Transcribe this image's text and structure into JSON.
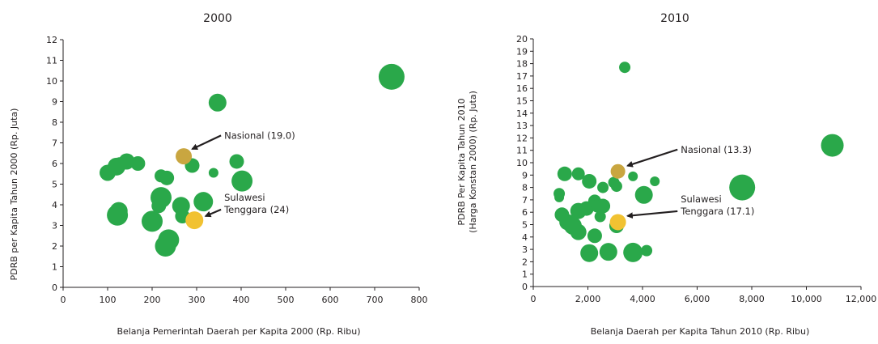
{
  "chart_data": [
    {
      "type": "scatter",
      "title": "2000",
      "xlabel": "Belanja Pemerintah Daerah per Kapita 2000 (Rp. Ribu)",
      "ylabel": [
        "PDRB per Kapita Tahun  2000 (Rp. Juta)"
      ],
      "xlim": [
        0,
        800
      ],
      "ylim": [
        0,
        12
      ],
      "xticks": [
        0,
        100,
        200,
        300,
        400,
        500,
        600,
        700,
        800
      ],
      "xtick_labels": [
        "0",
        "100",
        "200",
        "300",
        "400",
        "500",
        "600",
        "700",
        "800"
      ],
      "yticks": [
        0,
        1,
        2,
        3,
        4,
        5,
        6,
        7,
        8,
        9,
        10,
        11,
        12
      ],
      "ytick_labels": [
        "0",
        "1",
        "2",
        "3",
        "4",
        "5",
        "6",
        "7",
        "8",
        "9",
        "10",
        "11",
        "12"
      ],
      "grid": false,
      "legend": "none",
      "colors": {
        "province": "#2aa84a",
        "nasional": "#c9a640",
        "highlight": "#f1c232"
      },
      "points": [
        {
          "x": 738,
          "y": 10.2,
          "size": 16,
          "group": "province"
        },
        {
          "x": 347,
          "y": 8.95,
          "size": 11,
          "group": "province"
        },
        {
          "x": 390,
          "y": 6.1,
          "size": 9,
          "group": "province"
        },
        {
          "x": 290,
          "y": 5.9,
          "size": 9,
          "group": "province"
        },
        {
          "x": 338,
          "y": 5.55,
          "size": 6,
          "group": "province"
        },
        {
          "x": 402,
          "y": 5.15,
          "size": 13,
          "group": "province"
        },
        {
          "x": 100,
          "y": 5.55,
          "size": 10,
          "group": "province"
        },
        {
          "x": 120,
          "y": 5.85,
          "size": 11,
          "group": "province"
        },
        {
          "x": 127,
          "y": 5.95,
          "size": 9,
          "group": "province"
        },
        {
          "x": 143,
          "y": 6.1,
          "size": 10,
          "group": "province"
        },
        {
          "x": 168,
          "y": 6.0,
          "size": 9,
          "group": "province"
        },
        {
          "x": 220,
          "y": 5.4,
          "size": 8,
          "group": "province"
        },
        {
          "x": 233,
          "y": 5.3,
          "size": 9,
          "group": "province"
        },
        {
          "x": 220,
          "y": 4.35,
          "size": 13,
          "group": "province"
        },
        {
          "x": 215,
          "y": 3.95,
          "size": 9,
          "group": "province"
        },
        {
          "x": 200,
          "y": 3.2,
          "size": 13,
          "group": "province"
        },
        {
          "x": 125,
          "y": 3.7,
          "size": 11,
          "group": "province"
        },
        {
          "x": 122,
          "y": 3.5,
          "size": 13,
          "group": "province"
        },
        {
          "x": 265,
          "y": 3.95,
          "size": 11,
          "group": "province"
        },
        {
          "x": 268,
          "y": 3.45,
          "size": 9,
          "group": "province"
        },
        {
          "x": 315,
          "y": 4.15,
          "size": 12,
          "group": "province"
        },
        {
          "x": 237,
          "y": 2.3,
          "size": 13,
          "group": "province"
        },
        {
          "x": 230,
          "y": 2.0,
          "size": 13,
          "group": "province"
        },
        {
          "x": 271,
          "y": 6.35,
          "size": 10,
          "group": "nasional"
        },
        {
          "x": 295,
          "y": 3.25,
          "size": 11,
          "group": "highlight"
        }
      ],
      "annotations": [
        {
          "lines": [
            "Nasional (19.0)"
          ],
          "tx": 362,
          "ty": 7.2,
          "ax": 290,
          "ay": 6.7
        },
        {
          "lines": [
            "Sulawesi",
            "Tenggara (24)"
          ],
          "tx": 362,
          "ty": 4.2,
          "ax": 320,
          "ay": 3.45
        }
      ]
    },
    {
      "type": "scatter",
      "title": "2010",
      "xlabel": "Belanja Daerah per Kapita Tahun 2010 (Rp. Ribu)",
      "ylabel": [
        "PDRB Per Kapita Tahun 2010",
        "(Harga Konstan 2000) (Rp. Juta)"
      ],
      "xlim": [
        0,
        12000
      ],
      "ylim": [
        0,
        20
      ],
      "xticks": [
        0,
        2000,
        4000,
        6000,
        8000,
        10000,
        12000
      ],
      "xtick_labels": [
        "0",
        "2,000",
        "4,000",
        "6,000",
        "8,000",
        "10,000",
        "12,000"
      ],
      "yticks": [
        0,
        1,
        2,
        3,
        4,
        5,
        6,
        7,
        8,
        9,
        10,
        11,
        12,
        13,
        14,
        15,
        16,
        17,
        18,
        19,
        20
      ],
      "ytick_labels": [
        "0",
        "1",
        "2",
        "3",
        "4",
        "5",
        "6",
        "7",
        "8",
        "9",
        "10",
        "11",
        "12",
        "13",
        "14",
        "15",
        "16",
        "17",
        "18",
        "19",
        "20"
      ],
      "grid": false,
      "legend": "none",
      "colors": {
        "province": "#2aa84a",
        "nasional": "#c9a640",
        "highlight": "#f1c232"
      },
      "points": [
        {
          "x": 3350,
          "y": 17.7,
          "size": 7,
          "group": "province"
        },
        {
          "x": 10950,
          "y": 11.4,
          "size": 14,
          "group": "province"
        },
        {
          "x": 7650,
          "y": 8.0,
          "size": 16,
          "group": "province"
        },
        {
          "x": 1150,
          "y": 9.1,
          "size": 9,
          "group": "province"
        },
        {
          "x": 1650,
          "y": 9.1,
          "size": 8,
          "group": "province"
        },
        {
          "x": 2050,
          "y": 8.5,
          "size": 9,
          "group": "province"
        },
        {
          "x": 2550,
          "y": 8.0,
          "size": 7,
          "group": "province"
        },
        {
          "x": 2950,
          "y": 8.4,
          "size": 7,
          "group": "province"
        },
        {
          "x": 3050,
          "y": 8.1,
          "size": 7,
          "group": "province"
        },
        {
          "x": 3650,
          "y": 8.9,
          "size": 6,
          "group": "province"
        },
        {
          "x": 4450,
          "y": 8.5,
          "size": 6,
          "group": "province"
        },
        {
          "x": 4050,
          "y": 7.4,
          "size": 11,
          "group": "province"
        },
        {
          "x": 950,
          "y": 7.5,
          "size": 7,
          "group": "province"
        },
        {
          "x": 950,
          "y": 7.2,
          "size": 6,
          "group": "province"
        },
        {
          "x": 1050,
          "y": 5.8,
          "size": 9,
          "group": "province"
        },
        {
          "x": 1250,
          "y": 5.2,
          "size": 10,
          "group": "province"
        },
        {
          "x": 1450,
          "y": 4.9,
          "size": 11,
          "group": "province"
        },
        {
          "x": 1650,
          "y": 6.1,
          "size": 10,
          "group": "province"
        },
        {
          "x": 1950,
          "y": 6.3,
          "size": 9,
          "group": "province"
        },
        {
          "x": 2250,
          "y": 6.9,
          "size": 8,
          "group": "province"
        },
        {
          "x": 2350,
          "y": 6.5,
          "size": 8,
          "group": "province"
        },
        {
          "x": 2550,
          "y": 6.5,
          "size": 9,
          "group": "province"
        },
        {
          "x": 2450,
          "y": 5.65,
          "size": 7,
          "group": "province"
        },
        {
          "x": 1650,
          "y": 4.4,
          "size": 10,
          "group": "province"
        },
        {
          "x": 2250,
          "y": 4.1,
          "size": 9,
          "group": "province"
        },
        {
          "x": 3050,
          "y": 4.9,
          "size": 9,
          "group": "province"
        },
        {
          "x": 2050,
          "y": 2.7,
          "size": 11,
          "group": "province"
        },
        {
          "x": 2750,
          "y": 2.8,
          "size": 11,
          "group": "province"
        },
        {
          "x": 3650,
          "y": 2.75,
          "size": 12,
          "group": "province"
        },
        {
          "x": 4150,
          "y": 2.9,
          "size": 7,
          "group": "province"
        },
        {
          "x": 3100,
          "y": 9.3,
          "size": 9,
          "group": "nasional"
        },
        {
          "x": 3100,
          "y": 5.2,
          "size": 10,
          "group": "highlight"
        }
      ],
      "annotations": [
        {
          "lines": [
            "Nasional (13.3)"
          ],
          "tx": 5400,
          "ty": 10.8,
          "ax": 3450,
          "ay": 9.75
        },
        {
          "lines": [
            "Sulawesi",
            "Tenggara (17.1)"
          ],
          "tx": 5400,
          "ty": 6.8,
          "ax": 3450,
          "ay": 5.7
        }
      ]
    }
  ]
}
